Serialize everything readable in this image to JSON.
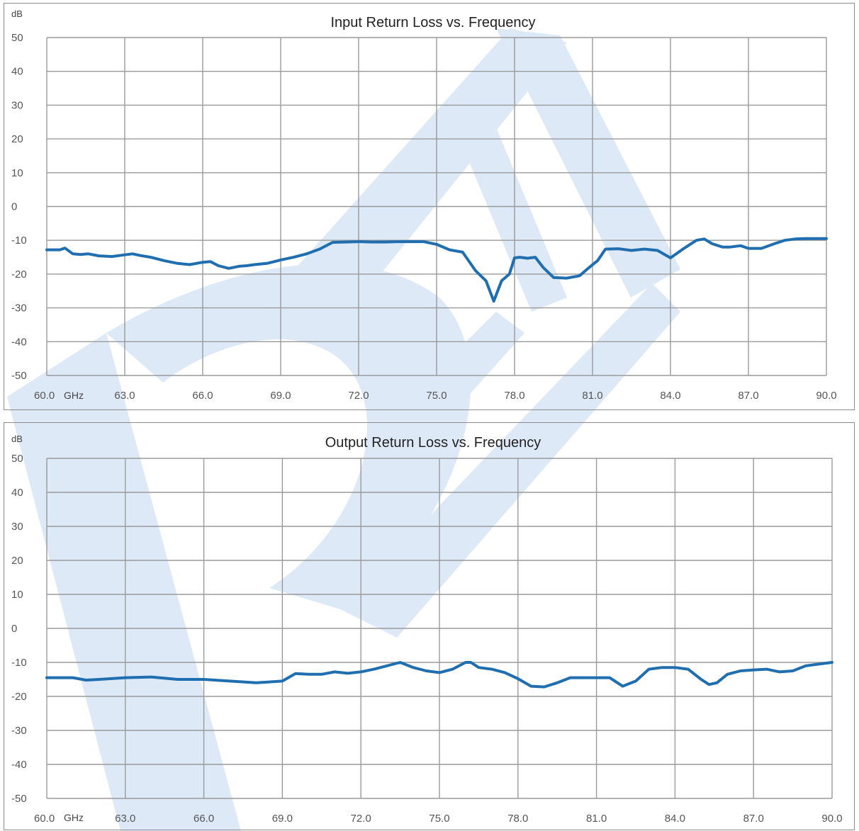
{
  "colors": {
    "series": "#1f6eb0",
    "watermark": "#dde9f6",
    "grid": "#9a9a9a"
  },
  "chart_data": [
    {
      "type": "line",
      "title": "Input Return Loss vs. Frequency",
      "ylabel": "dB",
      "x_unit": "GHz",
      "xlim": [
        60,
        90
      ],
      "ylim": [
        -50,
        50
      ],
      "x_ticks": [
        "60.0",
        "63.0",
        "66.0",
        "69.0",
        "72.0",
        "75.0",
        "78.0",
        "81.0",
        "84.0",
        "87.0",
        "90.0"
      ],
      "y_ticks": [
        "50",
        "40",
        "30",
        "20",
        "10",
        "0",
        "-10",
        "-20",
        "-30",
        "-40",
        "-50"
      ],
      "grid": true,
      "series": [
        {
          "x": [
            60,
            60.5,
            60.7,
            61.0,
            61.3,
            61.6,
            62.0,
            62.5,
            63.0,
            63.3,
            63.6,
            64.0,
            64.5,
            65.0,
            65.5,
            66.0,
            66.3,
            66.6,
            67.0,
            67.4,
            67.7,
            68.0,
            68.5,
            69.0,
            69.5,
            70.0,
            70.5,
            71.0,
            71.5,
            72.0,
            72.5,
            73.0,
            73.5,
            74.0,
            74.5,
            75.0,
            75.5,
            76.0,
            76.5,
            76.9,
            77.2,
            77.5,
            77.8,
            78.0,
            78.2,
            78.5,
            78.8,
            79.1,
            79.5,
            80.0,
            80.5,
            80.8,
            81.2,
            81.5,
            82.0,
            82.5,
            83.0,
            83.5,
            84.0,
            84.5,
            85.0,
            85.3,
            85.6,
            86.0,
            86.3,
            86.7,
            87.0,
            87.5,
            88.0,
            88.4,
            88.8,
            89.2,
            89.6,
            90.0
          ],
          "y": [
            -12.8,
            -12.8,
            -12.3,
            -14.0,
            -14.2,
            -14.0,
            -14.6,
            -14.8,
            -14.3,
            -14.0,
            -14.5,
            -15.0,
            -16.0,
            -16.8,
            -17.2,
            -16.5,
            -16.3,
            -17.5,
            -18.3,
            -17.7,
            -17.5,
            -17.2,
            -16.8,
            -15.8,
            -15.0,
            -14.0,
            -12.6,
            -10.6,
            -10.5,
            -10.4,
            -10.5,
            -10.5,
            -10.4,
            -10.4,
            -10.4,
            -11.2,
            -12.8,
            -13.5,
            -19.0,
            -22.0,
            -28.0,
            -22.0,
            -20.0,
            -15.2,
            -15.0,
            -15.3,
            -15.0,
            -18.0,
            -21.0,
            -21.2,
            -20.5,
            -18.5,
            -16.0,
            -12.6,
            -12.5,
            -13.0,
            -12.6,
            -13.0,
            -15.2,
            -12.5,
            -10.0,
            -9.6,
            -11.0,
            -12.0,
            -12.0,
            -11.6,
            -12.4,
            -12.4,
            -11.0,
            -10.0,
            -9.6,
            -9.5,
            -9.5,
            -9.5
          ]
        }
      ]
    },
    {
      "type": "line",
      "title": "Output Return Loss vs. Frequency",
      "ylabel": "dB",
      "x_unit": "GHz",
      "xlim": [
        60,
        90
      ],
      "ylim": [
        -50,
        50
      ],
      "x_ticks": [
        "60.0",
        "63.0",
        "66.0",
        "69.0",
        "72.0",
        "75.0",
        "78.0",
        "81.0",
        "84.0",
        "87.0",
        "90.0"
      ],
      "y_ticks": [
        "50",
        "40",
        "30",
        "20",
        "10",
        "0",
        "-10",
        "-20",
        "-30",
        "-40",
        "-50"
      ],
      "grid": true,
      "series": [
        {
          "x": [
            60,
            61.0,
            61.5,
            62.0,
            63.0,
            64.0,
            65.0,
            66.0,
            67.0,
            68.0,
            69.0,
            69.5,
            70.0,
            70.5,
            71.0,
            71.5,
            72.0,
            72.5,
            73.0,
            73.5,
            74.0,
            74.5,
            75.0,
            75.5,
            76.0,
            76.2,
            76.5,
            77.0,
            77.5,
            78.0,
            78.5,
            79.0,
            79.5,
            80.0,
            80.5,
            81.0,
            81.5,
            82.0,
            82.5,
            83.0,
            83.5,
            84.0,
            84.5,
            85.0,
            85.3,
            85.6,
            86.0,
            86.5,
            87.0,
            87.5,
            88.0,
            88.5,
            89.0,
            90.0
          ],
          "y": [
            -14.5,
            -14.5,
            -15.2,
            -15.0,
            -14.5,
            -14.3,
            -15.0,
            -15.0,
            -15.5,
            -16.0,
            -15.5,
            -13.3,
            -13.5,
            -13.5,
            -12.8,
            -13.2,
            -12.8,
            -12.0,
            -11.0,
            -10.0,
            -11.5,
            -12.5,
            -13.0,
            -12.0,
            -10.0,
            -10.0,
            -11.5,
            -12.0,
            -13.0,
            -14.8,
            -17.0,
            -17.2,
            -16.0,
            -14.5,
            -14.5,
            -14.5,
            -14.5,
            -17.0,
            -15.5,
            -12.0,
            -11.5,
            -11.5,
            -12.0,
            -15.0,
            -16.5,
            -16.0,
            -13.5,
            -12.5,
            -12.2,
            -12.0,
            -12.8,
            -12.5,
            -11.0,
            -10.0
          ]
        }
      ]
    }
  ]
}
